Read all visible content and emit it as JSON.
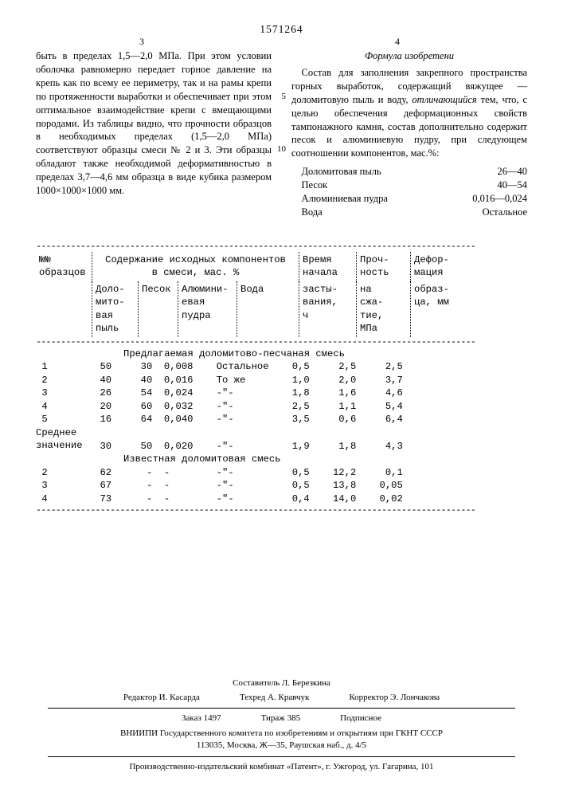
{
  "patent_number": "1571264",
  "page_left": "3",
  "page_right": "4",
  "line_markers": {
    "l5": "5",
    "l10": "10"
  },
  "left_para": "быть в пределах 1,5—2,0 МПа. При этом условии оболочка равномерно передает горное давление на крепь как по всему ее периметру, так и на рамы крепи по протяженности выработки и обеспечивает при этом оптимальное взаимодействие крепи с вмещающими породами. Из таблицы видно, что прочности образцов в необходимых пределах (1,5—2,0 МПа) соответствуют образцы смеси № 2 и 3. Эти образцы обладают также необходимой деформативностью в пределах 3,7—4,6 мм образца в виде кубика размером 1000×1000×1000 мм.",
  "formula_heading": "Формула изобретени",
  "formula_para_a": "Состав для заполнения закрепного пространства горных выработок, содержащий вяжущее — доломитовую пыль и воду, ",
  "formula_para_b_it": "отличающийся",
  "formula_para_c": " тем, что, с целью обеспечения деформационных свойств тампонажного камня, состав дополнительно содержит песок и алюминиевую пудру, при следующем соотношении компонентов, мас.%:",
  "components": [
    {
      "name": "Доломитовая пыль",
      "value": "26—40"
    },
    {
      "name": "Песок",
      "value": "40—54"
    },
    {
      "name": "Алюминиевая пудра",
      "value": "0,016—0,024"
    },
    {
      "name": "Вода",
      "value": "Остальное"
    }
  ],
  "table": {
    "head_top": {
      "col0": "№№\nобразцов",
      "col1234": "Содержание исходных компонентов\nв смеси, мас. %",
      "col5": "Время\nначала",
      "col6": "Проч-\nность",
      "col7": "Дефор-\nмация"
    },
    "head_sub": {
      "s1": "Доло-\nмито-\nвая\nпыль",
      "s2": "Песок",
      "s3": "Алюмини-\nевая\nпудра",
      "s4": "Вода",
      "s5": "засты-\nвания,\nч",
      "s6": "на\nсжа-\nтие,\nМПа",
      "s7": "образ-\nца, мм"
    },
    "group1_title": "Предлагаемая доломитово-песчаная смесь",
    "group1_rows": [
      [
        "1",
        "50",
        "30",
        "0,008",
        "Остальное",
        "0,5",
        "2,5",
        "2,5"
      ],
      [
        "2",
        "40",
        "40",
        "0,016",
        "То же",
        "1,0",
        "2,0",
        "3,7"
      ],
      [
        "3",
        "26",
        "54",
        "0,024",
        "-\"-",
        "1,8",
        "1,6",
        "4,6"
      ],
      [
        "4",
        "20",
        "60",
        "0,032",
        "-\"-",
        "2,5",
        "1,1",
        "5,4"
      ],
      [
        "5",
        "16",
        "64",
        "0,040",
        "-\"-",
        "3,5",
        "0,6",
        "6,4"
      ]
    ],
    "avg_label": "Среднее\nзначение",
    "avg_row": [
      "",
      "30",
      "50",
      "0,020",
      "-\"-",
      "1,9",
      "1,8",
      "4,3"
    ],
    "group2_title": "Известная доломитовая смесь",
    "group2_rows": [
      [
        "2",
        "62",
        "-",
        "-",
        "-\"-",
        "0,5",
        "12,2",
        "0,1"
      ],
      [
        "3",
        "67",
        "-",
        "-",
        "-\"-",
        "0,5",
        "13,8",
        "0,05"
      ],
      [
        "4",
        "73",
        "-",
        "-",
        "-\"-",
        "0,4",
        "14,0",
        "0,02"
      ]
    ]
  },
  "footer": {
    "compiler": "Составитель Л. Березкина",
    "editor": "Редактор И. Касарда",
    "tech": "Техред А. Кравчук",
    "corrector": "Корректор Э. Лончакова",
    "order": "Заказ 1497",
    "tirazh": "Тираж 385",
    "sub": "Подписное",
    "org1": "ВНИИПИ Государственного комитета по изобретениям и открытиям при ГКНТ СССР",
    "addr1": "113035, Москва, Ж—35, Раушская наб., д. 4/5",
    "org2": "Производственно-издательский комбинат «Патент», г. Ужгород, ул. Гагарина, 101"
  }
}
